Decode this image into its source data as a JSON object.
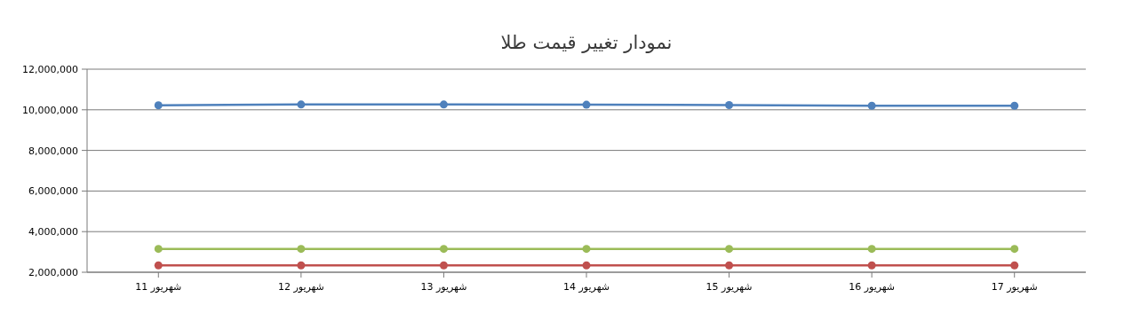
{
  "chart_data": {
    "type": "line",
    "title": "نمودار تغییر قیمت طلا",
    "categories": [
      "شهریور 11",
      "شهریور 12",
      "شهریور 13",
      "شهریور 14",
      "شهریور 15",
      "شهریور 16",
      "شهریور 17"
    ],
    "series": [
      {
        "color": "#4f81bc",
        "values": [
          10220000,
          10260000,
          10260000,
          10250000,
          10230000,
          10200000,
          10200000
        ]
      },
      {
        "color": "#9bbb58",
        "values": [
          3150000,
          3150000,
          3150000,
          3150000,
          3150000,
          3150000,
          3150000
        ]
      },
      {
        "color": "#c0504e",
        "values": [
          2340000,
          2340000,
          2340000,
          2340000,
          2340000,
          2340000,
          2340000
        ]
      }
    ],
    "ylim": [
      2000000,
      12000000
    ],
    "yticks": [
      {
        "value": 2000000,
        "label": "2,000,000"
      },
      {
        "value": 4000000,
        "label": "4,000,000"
      },
      {
        "value": 6000000,
        "label": "6,000,000"
      },
      {
        "value": 8000000,
        "label": "8,000,000"
      },
      {
        "value": 10000000,
        "label": "10,000,000"
      },
      {
        "value": 12000000,
        "label": "12,000,000"
      }
    ],
    "grid": "y",
    "marker": "circle",
    "line_style": "solid"
  }
}
